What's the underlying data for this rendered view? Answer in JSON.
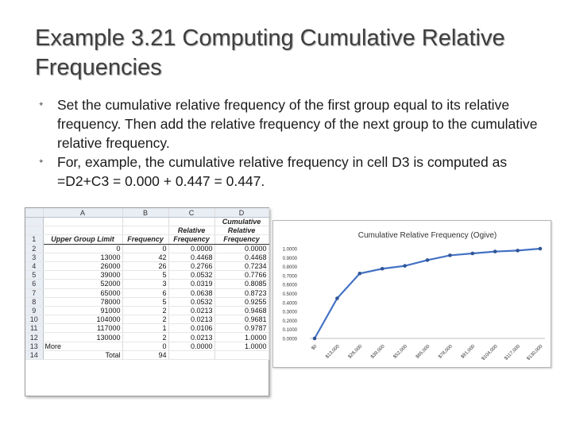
{
  "slide": {
    "title": "Example 3.21  Computing Cumulative Relative Frequencies",
    "bullets": [
      "Set the cumulative relative frequency of the first group equal to its relative frequency. Then add the relative frequency of the next group to the cumulative relative frequency.",
      "For, example, the cumulative relative frequency in cell D3 is computed as =D2+C3 = 0.000 + 0.447 = 0.447."
    ],
    "bullet_icon": "square-bullet-icon"
  },
  "sheet": {
    "columns": [
      "A",
      "B",
      "C",
      "D"
    ],
    "header_lines": [
      [
        "",
        "",
        "",
        "Cumulative"
      ],
      [
        "",
        "",
        "Relative",
        "Relative"
      ],
      [
        "Upper Group Limit",
        "Frequency",
        "Frequency",
        "Frequency"
      ]
    ],
    "rows": [
      {
        "n": "2",
        "a": "0",
        "b": "0",
        "c": "0.0000",
        "d": "0.0000"
      },
      {
        "n": "3",
        "a": "13000",
        "b": "42",
        "c": "0.4468",
        "d": "0.4468"
      },
      {
        "n": "4",
        "a": "26000",
        "b": "26",
        "c": "0.2766",
        "d": "0.7234"
      },
      {
        "n": "5",
        "a": "39000",
        "b": "5",
        "c": "0.0532",
        "d": "0.7766"
      },
      {
        "n": "6",
        "a": "52000",
        "b": "3",
        "c": "0.0319",
        "d": "0.8085"
      },
      {
        "n": "7",
        "a": "65000",
        "b": "6",
        "c": "0.0638",
        "d": "0.8723"
      },
      {
        "n": "8",
        "a": "78000",
        "b": "5",
        "c": "0.0532",
        "d": "0.9255"
      },
      {
        "n": "9",
        "a": "91000",
        "b": "2",
        "c": "0.0213",
        "d": "0.9468"
      },
      {
        "n": "10",
        "a": "104000",
        "b": "2",
        "c": "0.0213",
        "d": "0.9681"
      },
      {
        "n": "11",
        "a": "117000",
        "b": "1",
        "c": "0.0106",
        "d": "0.9787"
      },
      {
        "n": "12",
        "a": "130000",
        "b": "2",
        "c": "0.0213",
        "d": "1.0000"
      },
      {
        "n": "13",
        "a": "More",
        "b": "0",
        "c": "0.0000",
        "d": "1.0000"
      },
      {
        "n": "14",
        "a": "Total",
        "b": "94",
        "c": "",
        "d": ""
      }
    ],
    "header_row_number": "1"
  },
  "chart_data": {
    "type": "line",
    "title": "Cumulative Relative Frequency (Ogive)",
    "categories": [
      "$0",
      "$13,000",
      "$26,000",
      "$39,000",
      "$52,000",
      "$65,000",
      "$78,000",
      "$91,000",
      "$104,000",
      "$117,000",
      "$130,000"
    ],
    "series": [
      {
        "values": [
          0.0,
          0.4468,
          0.7234,
          0.7766,
          0.8085,
          0.8723,
          0.9255,
          0.9468,
          0.9681,
          0.9787,
          1.0
        ]
      }
    ],
    "ylim": [
      0,
      1
    ],
    "ytick_labels": [
      "0.0000",
      "0.1000",
      "0.2000",
      "0.3000",
      "0.4000",
      "0.5000",
      "0.6000",
      "0.7000",
      "0.8000",
      "0.9000",
      "1.0000"
    ],
    "grid": false,
    "legend": "none",
    "line_color": "#4472c4"
  }
}
